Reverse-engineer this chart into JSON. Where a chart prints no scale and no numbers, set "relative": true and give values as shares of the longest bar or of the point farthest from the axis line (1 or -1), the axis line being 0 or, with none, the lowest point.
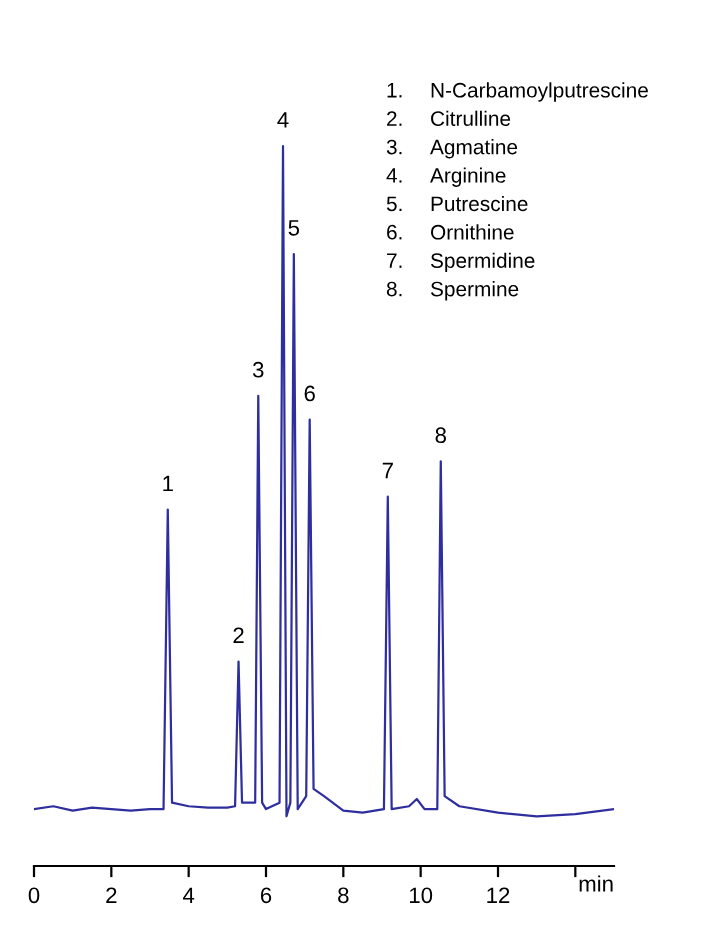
{
  "chart_data": {
    "type": "line",
    "relative": true,
    "xlabel": "min",
    "xlim": [
      0,
      15
    ],
    "xticks": [
      0,
      2,
      4,
      6,
      8,
      10,
      12,
      {
        "value": 14,
        "label": null
      }
    ],
    "grid": false,
    "legend": false,
    "marker": "none",
    "line_style": "solid",
    "series": [
      {
        "color": "#2e2e9e",
        "x": [
          0,
          0.5,
          1,
          1.5,
          2,
          2.5,
          3,
          3.35,
          3.46,
          3.57,
          4,
          4.5,
          5.0,
          5.2,
          5.29,
          5.38,
          5.55,
          5.72,
          5.8,
          5.9,
          6.0,
          6.35,
          6.44,
          6.53,
          6.63,
          6.72,
          6.82,
          7.04,
          7.13,
          7.23,
          7.5,
          8,
          8.5,
          9.05,
          9.15,
          9.25,
          9.7,
          9.9,
          10.1,
          10.43,
          10.52,
          10.62,
          11,
          12,
          13,
          14,
          15
        ],
        "values": [
          0.079,
          0.083,
          0.077,
          0.081,
          0.079,
          0.077,
          0.079,
          0.079,
          0.495,
          0.088,
          0.083,
          0.081,
          0.081,
          0.083,
          0.284,
          0.088,
          0.088,
          0.088,
          0.653,
          0.088,
          0.079,
          0.088,
          1.0,
          0.069,
          0.088,
          0.85,
          0.079,
          0.097,
          0.62,
          0.107,
          0.097,
          0.077,
          0.074,
          0.079,
          0.513,
          0.079,
          0.083,
          0.093,
          0.079,
          0.079,
          0.562,
          0.097,
          0.083,
          0.074,
          0.069,
          0.072,
          0.079
        ]
      }
    ],
    "annotations": [
      {
        "text": "1",
        "x": 3.46,
        "y": 0.495
      },
      {
        "text": "2",
        "x": 5.29,
        "y": 0.284
      },
      {
        "text": "3",
        "x": 5.8,
        "y": 0.653
      },
      {
        "text": "4",
        "x": 6.44,
        "y": 1.0
      },
      {
        "text": "5",
        "x": 6.72,
        "y": 0.85
      },
      {
        "text": "6",
        "x": 7.13,
        "y": 0.62
      },
      {
        "text": "7",
        "x": 9.15,
        "y": 0.513
      },
      {
        "text": "8",
        "x": 10.52,
        "y": 0.562
      },
      "1.\tN-Carbamoylputrescine",
      "2.\tCitrulline",
      "3.\tAgmatine",
      "4.\tArginine",
      "5.\tPutrescine",
      "6.\tOrnithine",
      "7.\tSpermidine",
      "8.\tSpermine"
    ]
  }
}
